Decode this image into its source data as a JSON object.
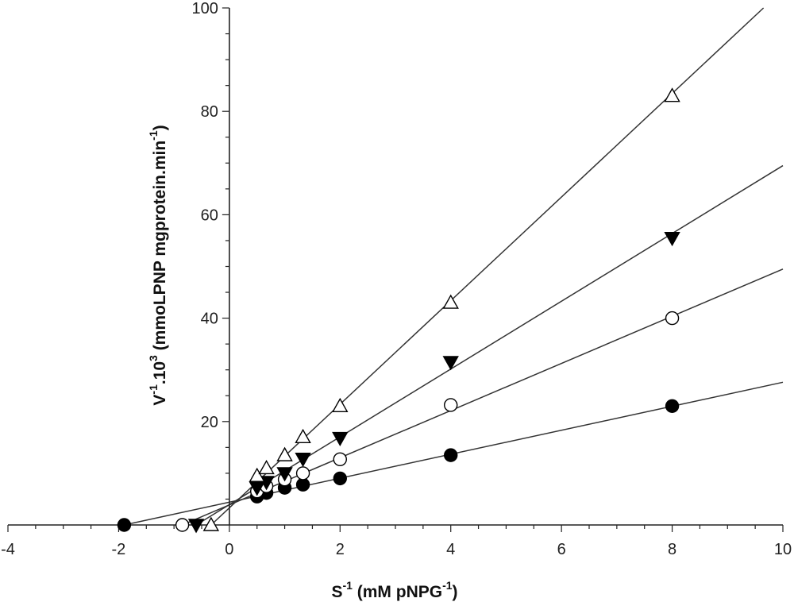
{
  "chart_data": {
    "type": "scatter",
    "title": "",
    "xlabel": {
      "base": "S",
      "sup": "-1",
      "rest": " (mM pNPG",
      "sup2": "-1",
      "end": ")"
    },
    "ylabel": {
      "p1": "V",
      "s1": "-1",
      "p2": ".10",
      "s2": "3",
      "p3": " (mmoLPNP mgprotein.min",
      "s3": "-1",
      "p4": ")"
    },
    "xlim": [
      -4,
      10
    ],
    "ylim": [
      0,
      100
    ],
    "xticks": [
      "-4",
      "-2",
      "0",
      "2",
      "4",
      "6",
      "8",
      "10"
    ],
    "yticks": [
      "20",
      "40",
      "60",
      "80",
      "100"
    ],
    "grid": false,
    "series": [
      {
        "marker": "filled-circle",
        "points": [
          [
            -1.9,
            0
          ],
          [
            0.5,
            5.5
          ],
          [
            0.67,
            6.2
          ],
          [
            1.0,
            7.2
          ],
          [
            1.33,
            7.8
          ],
          [
            2.0,
            9.0
          ],
          [
            4.0,
            13.5
          ],
          [
            8.0,
            23.0
          ]
        ],
        "line": [
          [
            -1.9,
            0
          ],
          [
            10,
            27.6
          ]
        ]
      },
      {
        "marker": "open-circle",
        "points": [
          [
            -0.85,
            0
          ],
          [
            0.5,
            6.5
          ],
          [
            0.67,
            7.5
          ],
          [
            1.0,
            8.8
          ],
          [
            1.33,
            10.0
          ],
          [
            2.0,
            12.7
          ],
          [
            4.0,
            23.2
          ],
          [
            8.0,
            40.0
          ]
        ],
        "line": [
          [
            -0.85,
            0
          ],
          [
            10,
            49.5
          ]
        ]
      },
      {
        "marker": "filled-triangle-down",
        "points": [
          [
            -0.6,
            0
          ],
          [
            0.5,
            7.2
          ],
          [
            0.67,
            8.3
          ],
          [
            1.0,
            10.0
          ],
          [
            1.33,
            12.8
          ],
          [
            2.0,
            16.8
          ],
          [
            4.0,
            31.5
          ],
          [
            8.0,
            55.5
          ]
        ],
        "line": [
          [
            -0.6,
            0
          ],
          [
            10,
            69.5
          ]
        ]
      },
      {
        "marker": "open-triangle-up",
        "points": [
          [
            -0.33,
            0
          ],
          [
            0.5,
            9.5
          ],
          [
            0.67,
            11.0
          ],
          [
            1.0,
            13.5
          ],
          [
            1.33,
            17.0
          ],
          [
            2.0,
            23.0
          ],
          [
            4.0,
            43.0
          ],
          [
            8.0,
            83.0
          ]
        ],
        "line": [
          [
            -0.33,
            0
          ],
          [
            9.65,
            100
          ]
        ]
      }
    ]
  }
}
